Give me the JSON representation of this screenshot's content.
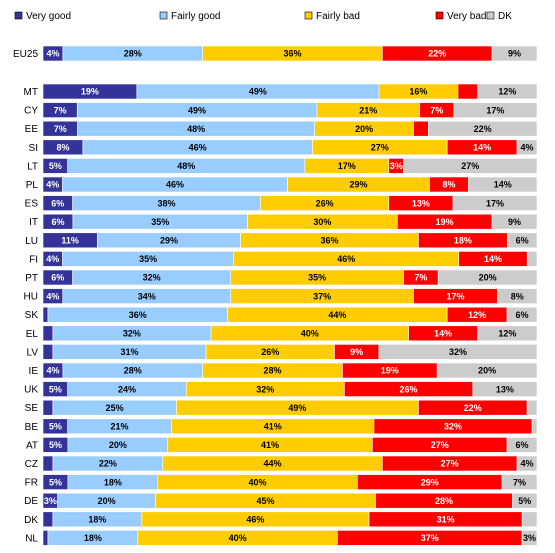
{
  "chart_data": {
    "type": "bar",
    "orientation": "horizontal",
    "stacked": true,
    "percent_stacked": true,
    "legend_position": "top",
    "grid": false,
    "categories": [
      "EU25",
      "MT",
      "CY",
      "EE",
      "SI",
      "LT",
      "PL",
      "ES",
      "IT",
      "LU",
      "FI",
      "PT",
      "HU",
      "SK",
      "EL",
      "LV",
      "IE",
      "UK",
      "SE",
      "BE",
      "AT",
      "CZ",
      "FR",
      "DE",
      "DK",
      "NL"
    ],
    "gap_after_first": true,
    "series": [
      {
        "name": "Very good",
        "color": "#333399",
        "label_color": "#ffffff",
        "values": [
          4,
          19,
          7,
          7,
          8,
          5,
          4,
          6,
          6,
          11,
          4,
          6,
          4,
          1,
          2,
          2,
          4,
          5,
          2,
          5,
          5,
          2,
          5,
          3,
          2,
          1
        ],
        "labels": [
          "4%",
          "19%",
          "7%",
          "7%",
          "8%",
          "5%",
          "4%",
          "6%",
          "6%",
          "11%",
          "4%",
          "6%",
          "4%",
          "",
          "",
          "",
          "4%",
          "5%",
          "",
          "5%",
          "5%",
          "",
          "5%",
          "3%",
          "",
          ""
        ]
      },
      {
        "name": "Fairly good",
        "color": "#99ccff",
        "label_color": "#000000",
        "values": [
          28,
          49,
          49,
          48,
          46,
          48,
          46,
          38,
          35,
          29,
          35,
          32,
          34,
          36,
          32,
          31,
          28,
          24,
          25,
          21,
          20,
          22,
          18,
          20,
          18,
          18
        ],
        "labels": [
          "28%",
          "49%",
          "49%",
          "48%",
          "46%",
          "48%",
          "46%",
          "38%",
          "35%",
          "29%",
          "35%",
          "32%",
          "34%",
          "36%",
          "32%",
          "31%",
          "28%",
          "24%",
          "25%",
          "21%",
          "20%",
          "22%",
          "18%",
          "20%",
          "18%",
          "18%"
        ]
      },
      {
        "name": "Fairly bad",
        "color": "#ffcc00",
        "label_color": "#000000",
        "values": [
          36,
          16,
          21,
          20,
          27,
          17,
          29,
          26,
          30,
          36,
          46,
          35,
          37,
          44,
          40,
          26,
          28,
          32,
          49,
          41,
          41,
          44,
          40,
          45,
          46,
          40
        ],
        "labels": [
          "36%",
          "16%",
          "21%",
          "20%",
          "27%",
          "17%",
          "29%",
          "26%",
          "30%",
          "36%",
          "46%",
          "35%",
          "37%",
          "44%",
          "40%",
          "26%",
          "28%",
          "32%",
          "49%",
          "41%",
          "41%",
          "44%",
          "40%",
          "45%",
          "46%",
          "40%"
        ]
      },
      {
        "name": "Very bad",
        "color": "#ff0000",
        "label_color": "#ffffff",
        "values": [
          22,
          4,
          7,
          3,
          14,
          3,
          8,
          13,
          19,
          18,
          14,
          7,
          17,
          12,
          14,
          9,
          19,
          26,
          22,
          32,
          27,
          27,
          29,
          28,
          31,
          37
        ],
        "labels": [
          "22%",
          "",
          "7%",
          "",
          "14%",
          "3%",
          "8%",
          "13%",
          "19%",
          "18%",
          "14%",
          "7%",
          "17%",
          "12%",
          "14%",
          "9%",
          "19%",
          "26%",
          "22%",
          "32%",
          "27%",
          "27%",
          "29%",
          "28%",
          "31%",
          "37%"
        ]
      },
      {
        "name": "DK",
        "color": "#cccccc",
        "label_color": "#000000",
        "values": [
          9,
          12,
          17,
          22,
          4,
          27,
          14,
          17,
          9,
          6,
          2,
          20,
          8,
          6,
          12,
          32,
          20,
          13,
          2,
          1,
          6,
          4,
          7,
          5,
          3,
          3
        ],
        "labels": [
          "9%",
          "12%",
          "17%",
          "22%",
          "4%",
          "27%",
          "14%",
          "17%",
          "9%",
          "6%",
          "",
          "20%",
          "8%",
          "6%",
          "12%",
          "32%",
          "20%",
          "13%",
          "",
          "",
          "6%",
          "4%",
          "7%",
          "5%",
          "",
          "3%"
        ]
      }
    ]
  }
}
